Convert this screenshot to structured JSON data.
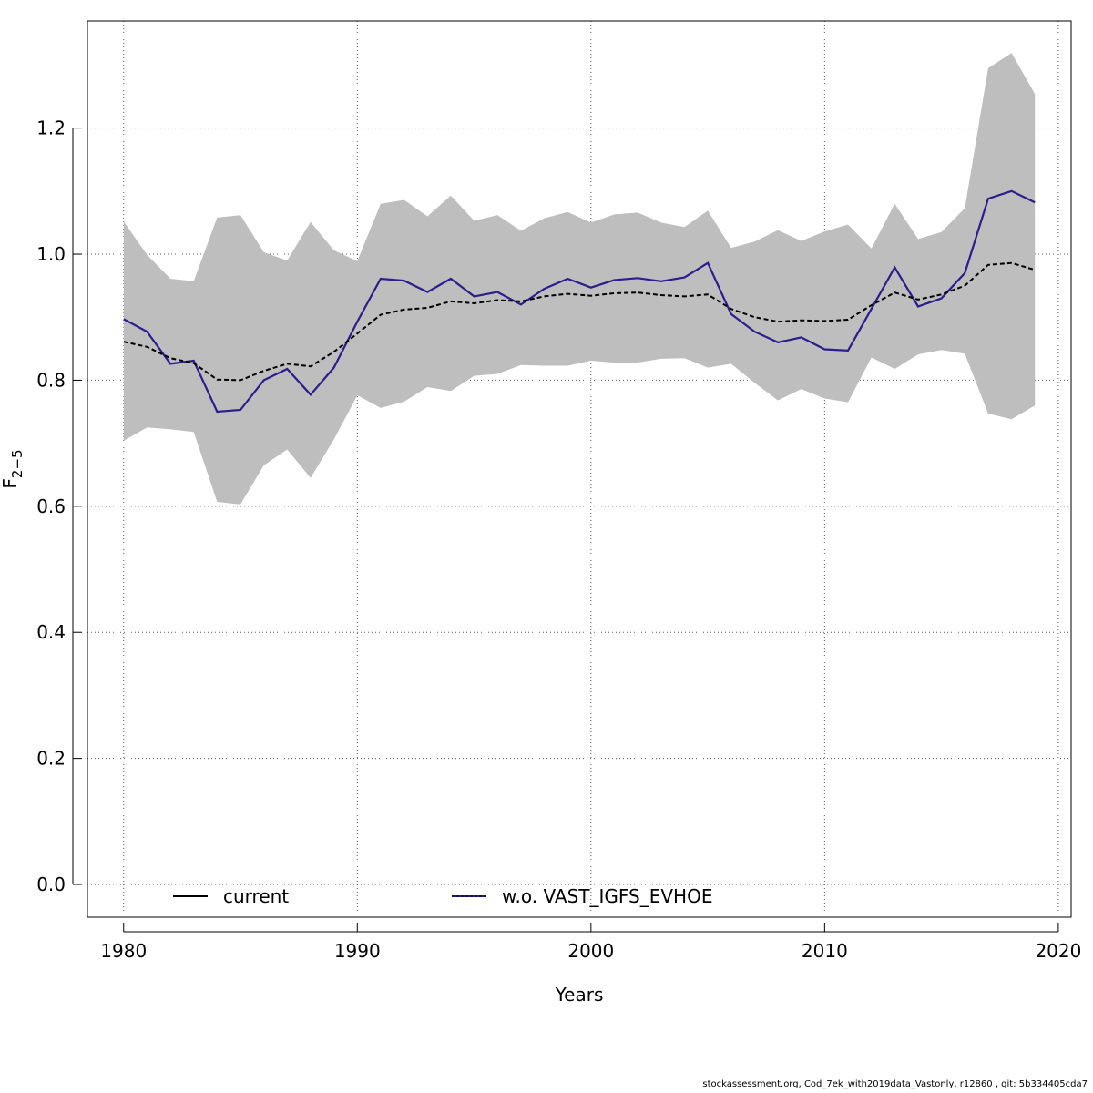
{
  "chart_data": {
    "type": "line",
    "title": "",
    "xlabel": "Years",
    "ylabel_main": "F",
    "ylabel_sub": "2−5",
    "xlim": [
      1978.45,
      2020.55
    ],
    "ylim": [
      -0.052,
      1.37
    ],
    "x_ticks": [
      1980,
      1990,
      2000,
      2010,
      2020
    ],
    "y_ticks": [
      0.0,
      0.2,
      0.4,
      0.6,
      0.8,
      1.0,
      1.2
    ],
    "y_tick_labels": [
      "0.0",
      "0.2",
      "0.4",
      "0.6",
      "0.8",
      "1.0",
      "1.2"
    ],
    "grid": "dotted",
    "legend_position": "bottom",
    "band_color": "#bebebe",
    "years": [
      1980,
      1981,
      1982,
      1983,
      1984,
      1985,
      1986,
      1987,
      1988,
      1989,
      1990,
      1991,
      1992,
      1993,
      1994,
      1995,
      1996,
      1997,
      1998,
      1999,
      2000,
      2001,
      2002,
      2003,
      2004,
      2005,
      2006,
      2007,
      2008,
      2009,
      2010,
      2011,
      2012,
      2013,
      2014,
      2015,
      2016,
      2017,
      2018,
      2019
    ],
    "band_upper": [
      1.052,
      0.999,
      0.961,
      0.957,
      1.058,
      1.062,
      1.003,
      0.99,
      1.051,
      1.006,
      0.989,
      1.08,
      1.086,
      1.06,
      1.093,
      1.053,
      1.062,
      1.037,
      1.057,
      1.067,
      1.05,
      1.063,
      1.066,
      1.05,
      1.043,
      1.069,
      1.01,
      1.02,
      1.038,
      1.021,
      1.036,
      1.047,
      1.009,
      1.08,
      1.024,
      1.035,
      1.073,
      1.295,
      1.319,
      1.254
    ],
    "band_lower": [
      0.704,
      0.725,
      0.722,
      0.718,
      0.607,
      0.603,
      0.665,
      0.69,
      0.645,
      0.706,
      0.776,
      0.756,
      0.766,
      0.789,
      0.783,
      0.807,
      0.81,
      0.824,
      0.823,
      0.823,
      0.831,
      0.828,
      0.828,
      0.834,
      0.835,
      0.82,
      0.826,
      0.796,
      0.768,
      0.786,
      0.771,
      0.765,
      0.836,
      0.818,
      0.841,
      0.848,
      0.842,
      0.747,
      0.738,
      0.76
    ],
    "series": [
      {
        "name": "current",
        "color": "#000000",
        "dash": "dashed",
        "values": [
          0.861,
          0.853,
          0.835,
          0.827,
          0.801,
          0.8,
          0.815,
          0.826,
          0.822,
          0.845,
          0.874,
          0.904,
          0.912,
          0.915,
          0.925,
          0.922,
          0.927,
          0.925,
          0.933,
          0.937,
          0.934,
          0.938,
          0.939,
          0.935,
          0.933,
          0.936,
          0.913,
          0.9,
          0.893,
          0.895,
          0.894,
          0.896,
          0.919,
          0.939,
          0.928,
          0.936,
          0.95,
          0.983,
          0.986,
          0.975
        ]
      },
      {
        "name": "w.o. VAST_IGFS_EVHOE",
        "color": "#2b1e8c",
        "dash": "solid",
        "values": [
          0.897,
          0.877,
          0.826,
          0.831,
          0.75,
          0.753,
          0.8,
          0.818,
          0.777,
          0.82,
          0.893,
          0.961,
          0.958,
          0.94,
          0.961,
          0.933,
          0.94,
          0.92,
          0.945,
          0.961,
          0.947,
          0.959,
          0.962,
          0.957,
          0.963,
          0.986,
          0.905,
          0.877,
          0.86,
          0.868,
          0.849,
          0.847,
          0.913,
          0.979,
          0.917,
          0.93,
          0.97,
          1.088,
          1.1,
          1.082
        ]
      }
    ]
  },
  "legend": {
    "current_label": "current",
    "wo_label": "w.o. VAST_IGFS_EVHOE"
  },
  "footer": "stockassessment.org, Cod_7ek_with2019data_Vastonly, r12860 , git: 5b334405cda7"
}
